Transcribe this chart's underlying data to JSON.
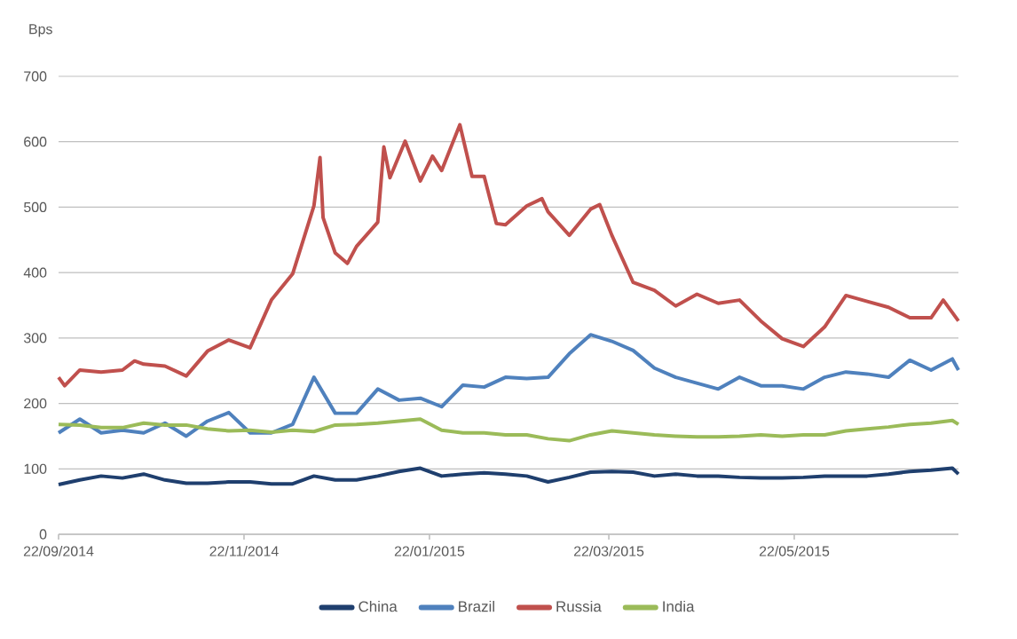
{
  "chart_data": {
    "type": "line",
    "ylabel": "Bps",
    "x": [
      "2014-09-22",
      "2014-09-29",
      "2014-10-06",
      "2014-10-13",
      "2014-10-20",
      "2014-10-27",
      "2014-11-03",
      "2014-11-10",
      "2014-11-17",
      "2014-11-24",
      "2014-12-01",
      "2014-12-08",
      "2014-12-15",
      "2014-12-22",
      "2014-12-29",
      "2015-01-05",
      "2015-01-12",
      "2015-01-19",
      "2015-01-26",
      "2015-02-02",
      "2015-02-09",
      "2015-02-16",
      "2015-02-23",
      "2015-03-02",
      "2015-03-09",
      "2015-03-16",
      "2015-03-23",
      "2015-03-30",
      "2015-04-06",
      "2015-04-13",
      "2015-04-20",
      "2015-04-27",
      "2015-05-04",
      "2015-05-11",
      "2015-05-18",
      "2015-05-25",
      "2015-06-01",
      "2015-06-08",
      "2015-06-15",
      "2015-06-22",
      "2015-06-29",
      "2015-07-06",
      "2015-07-13",
      "2015-07-15"
    ],
    "series": [
      {
        "name": "China",
        "color": "#1f3f6e",
        "values": [
          76,
          83,
          89,
          86,
          92,
          83,
          78,
          78,
          80,
          80,
          77,
          77,
          89,
          83,
          83,
          89,
          96,
          101,
          89,
          92,
          94,
          92,
          89,
          80,
          87,
          95,
          96,
          95,
          89,
          92,
          89,
          89,
          87,
          86,
          86,
          87,
          89,
          89,
          89,
          92,
          96,
          98,
          101,
          92
        ]
      },
      {
        "name": "Brazil",
        "color": "#4f81bd",
        "values": [
          155,
          176,
          155,
          159,
          155,
          170,
          150,
          173,
          186,
          155,
          155,
          168,
          240,
          185,
          185,
          222,
          205,
          208,
          195,
          228,
          225,
          240,
          238,
          240,
          276,
          305,
          295,
          281,
          254,
          240,
          231,
          222,
          240,
          227,
          227,
          222,
          240,
          248,
          245,
          240,
          266,
          251,
          268,
          251
        ]
      },
      {
        "name": "Russia",
        "color": "#c0504d",
        "x": [
          "2014-09-22",
          "2014-09-24",
          "2014-09-29",
          "2014-10-06",
          "2014-10-13",
          "2014-10-17",
          "2014-10-20",
          "2014-10-27",
          "2014-11-03",
          "2014-11-10",
          "2014-11-17",
          "2014-11-24",
          "2014-12-01",
          "2014-12-08",
          "2014-12-15",
          "2014-12-17",
          "2014-12-18",
          "2014-12-22",
          "2014-12-26",
          "2014-12-29",
          "2015-01-05",
          "2015-01-07",
          "2015-01-09",
          "2015-01-14",
          "2015-01-19",
          "2015-01-23",
          "2015-01-26",
          "2015-02-01",
          "2015-02-05",
          "2015-02-09",
          "2015-02-13",
          "2015-02-16",
          "2015-02-23",
          "2015-02-28",
          "2015-03-02",
          "2015-03-09",
          "2015-03-16",
          "2015-03-19",
          "2015-03-23",
          "2015-03-30",
          "2015-04-06",
          "2015-04-13",
          "2015-04-20",
          "2015-04-27",
          "2015-05-04",
          "2015-05-11",
          "2015-05-18",
          "2015-05-25",
          "2015-06-01",
          "2015-06-08",
          "2015-06-15",
          "2015-06-22",
          "2015-06-29",
          "2015-07-06",
          "2015-07-10",
          "2015-07-15"
        ],
        "values": [
          240,
          227,
          251,
          248,
          251,
          265,
          260,
          257,
          242,
          280,
          297,
          285,
          358,
          398,
          502,
          576,
          484,
          430,
          414,
          440,
          477,
          592,
          545,
          601,
          540,
          578,
          556,
          626,
          547,
          547,
          475,
          473,
          502,
          513,
          493,
          457,
          497,
          504,
          457,
          385,
          373,
          349,
          367,
          353,
          358,
          326,
          299,
          287,
          317,
          365,
          356,
          347,
          331,
          331,
          358,
          326
        ]
      },
      {
        "name": "India",
        "color": "#9bbb59",
        "values": [
          168,
          167,
          163,
          163,
          170,
          167,
          167,
          161,
          158,
          159,
          156,
          159,
          157,
          167,
          168,
          170,
          173,
          176,
          159,
          155,
          155,
          152,
          152,
          146,
          143,
          152,
          158,
          155,
          152,
          150,
          149,
          149,
          150,
          152,
          150,
          152,
          152,
          158,
          161,
          164,
          168,
          170,
          174,
          168
        ]
      }
    ],
    "xlim": [
      "2014-09-22",
      "2015-07-15"
    ],
    "xticks": [
      {
        "value": "2014-09-22",
        "label": "22/09/2014"
      },
      {
        "value": "2014-11-22",
        "label": "22/11/2014"
      },
      {
        "value": "2015-01-22",
        "label": "22/01/2015"
      },
      {
        "value": "2015-03-22",
        "label": "22/03/2015"
      },
      {
        "value": "2015-05-22",
        "label": "22/05/2015"
      }
    ],
    "ylim": [
      0,
      700
    ],
    "yticks": [
      0,
      100,
      200,
      300,
      400,
      500,
      600,
      700
    ],
    "grid": "y",
    "legend": "bottom"
  }
}
